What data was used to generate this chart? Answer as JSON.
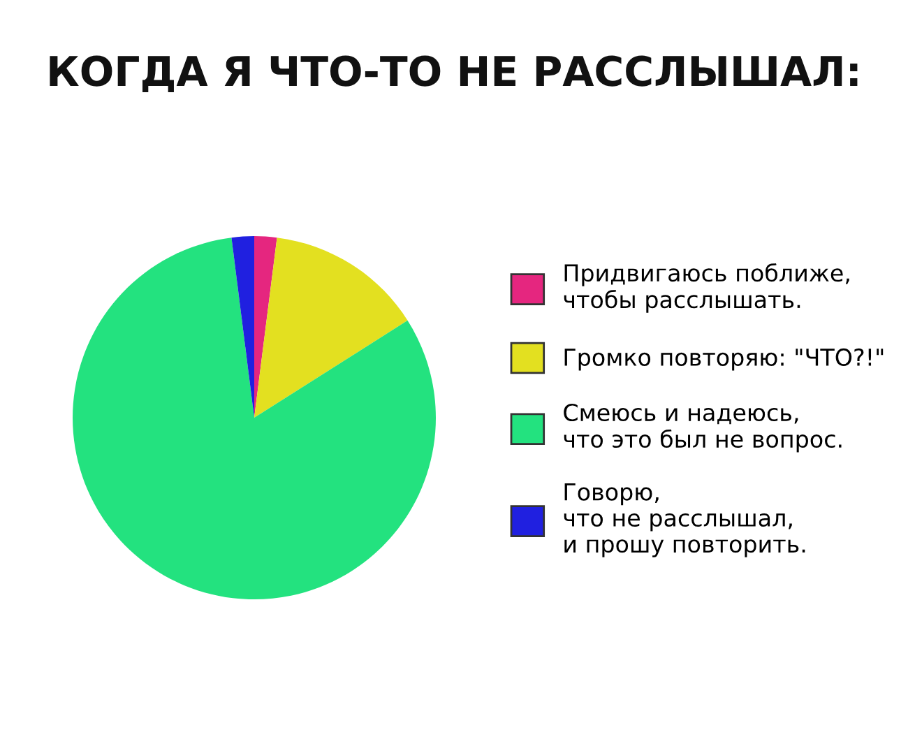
{
  "chart_data": {
    "type": "pie",
    "title": "КОГДА Я ЧТО-ТО НЕ РАССЛЫШАЛ:",
    "categories": [
      "Придвигаюсь поближе,\nчтобы расслышать.",
      "Громко повторяю: \"ЧТО?!\"",
      "Смеюсь и надеюсь,\nчто это был не вопрос.",
      "Говорю,\nчто не расслышал,\nи прошу повторить."
    ],
    "values": [
      2,
      14,
      82,
      2
    ],
    "colors": [
      "#e5267f",
      "#e3e020",
      "#23e27f",
      "#2020e0"
    ],
    "legend": "right"
  }
}
